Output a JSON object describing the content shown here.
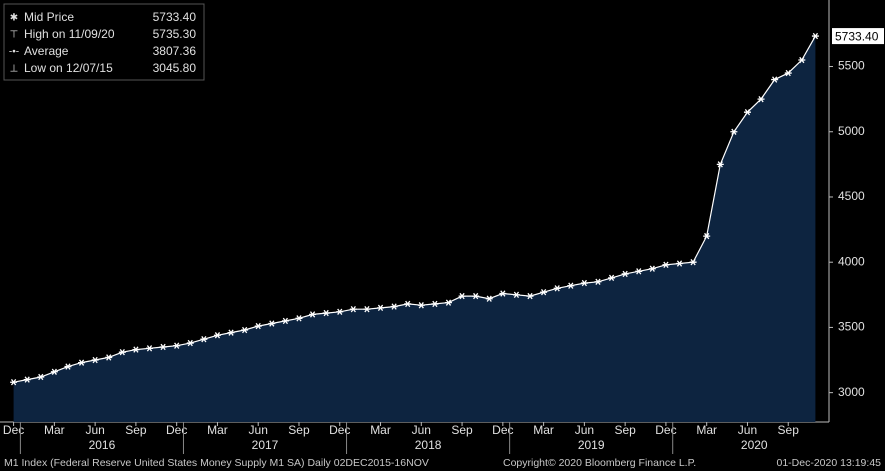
{
  "chart_data": {
    "type": "area",
    "stats": [
      {
        "label": "Mid Price",
        "value": "5733.40"
      },
      {
        "label": "High on 11/09/20",
        "value": "5735.30"
      },
      {
        "label": "Average",
        "value": "3807.36"
      },
      {
        "label": "Low on 12/07/15",
        "value": "3045.80"
      }
    ],
    "x": [
      "2015-12",
      "2016-01",
      "2016-02",
      "2016-03",
      "2016-04",
      "2016-05",
      "2016-06",
      "2016-07",
      "2016-08",
      "2016-09",
      "2016-10",
      "2016-11",
      "2016-12",
      "2017-01",
      "2017-02",
      "2017-03",
      "2017-04",
      "2017-05",
      "2017-06",
      "2017-07",
      "2017-08",
      "2017-09",
      "2017-10",
      "2017-11",
      "2017-12",
      "2018-01",
      "2018-02",
      "2018-03",
      "2018-04",
      "2018-05",
      "2018-06",
      "2018-07",
      "2018-08",
      "2018-09",
      "2018-10",
      "2018-11",
      "2018-12",
      "2019-01",
      "2019-02",
      "2019-03",
      "2019-04",
      "2019-05",
      "2019-06",
      "2019-07",
      "2019-08",
      "2019-09",
      "2019-10",
      "2019-11",
      "2019-12",
      "2020-01",
      "2020-02",
      "2020-03",
      "2020-04",
      "2020-05",
      "2020-06",
      "2020-07",
      "2020-08",
      "2020-09",
      "2020-10",
      "2020-11"
    ],
    "series": [
      {
        "name": "Mid Price",
        "color": "#ffffff",
        "fill": "#0d2440",
        "values": [
          3080,
          3100,
          3120,
          3160,
          3200,
          3230,
          3250,
          3270,
          3310,
          3330,
          3340,
          3350,
          3360,
          3380,
          3410,
          3440,
          3460,
          3480,
          3510,
          3530,
          3550,
          3570,
          3600,
          3610,
          3620,
          3640,
          3640,
          3650,
          3660,
          3680,
          3670,
          3680,
          3690,
          3740,
          3740,
          3720,
          3760,
          3750,
          3740,
          3770,
          3800,
          3820,
          3840,
          3850,
          3880,
          3910,
          3930,
          3950,
          3980,
          3990,
          4000,
          4200,
          4750,
          5000,
          5150,
          5250,
          5400,
          5450,
          5550,
          5733.4
        ]
      }
    ],
    "xlim": [
      "2015-11",
      "2020-12"
    ],
    "xticks": [
      {
        "value": "2015-12",
        "label": "Dec"
      },
      {
        "value": "2016-03",
        "label": "Mar"
      },
      {
        "value": "2016-06",
        "label": "Jun"
      },
      {
        "value": "2016-09",
        "label": "Sep"
      },
      {
        "value": "2016-12",
        "label": "Dec"
      },
      {
        "value": "2017-03",
        "label": "Mar"
      },
      {
        "value": "2017-06",
        "label": "Jun"
      },
      {
        "value": "2017-09",
        "label": "Sep"
      },
      {
        "value": "2017-12",
        "label": "Dec"
      },
      {
        "value": "2018-03",
        "label": "Mar"
      },
      {
        "value": "2018-06",
        "label": "Jun"
      },
      {
        "value": "2018-09",
        "label": "Sep"
      },
      {
        "value": "2018-12",
        "label": "Dec"
      },
      {
        "value": "2019-03",
        "label": "Mar"
      },
      {
        "value": "2019-06",
        "label": "Jun"
      },
      {
        "value": "2019-09",
        "label": "Sep"
      },
      {
        "value": "2019-12",
        "label": "Dec"
      },
      {
        "value": "2020-03",
        "label": "Mar"
      },
      {
        "value": "2020-06",
        "label": "Jun"
      },
      {
        "value": "2020-09",
        "label": "Sep"
      }
    ],
    "years": [
      "2016",
      "2017",
      "2018",
      "2019",
      "2020"
    ],
    "ylim": [
      2775,
      6010
    ],
    "yticks": [
      3000,
      3500,
      4000,
      4500,
      5000,
      5500
    ],
    "footer": {
      "description": "M1 Index (Federal Reserve United States Money Supply M1 SA)  Daily 02DEC2015-16NOV",
      "copyright": "Copyright© 2020 Bloomberg Finance L.P.",
      "timestamp": "01-Dec-2020 13:19:45"
    }
  }
}
